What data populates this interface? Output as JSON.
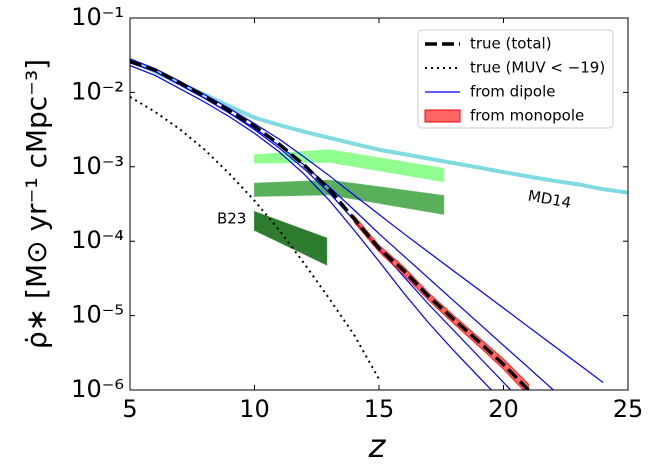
{
  "chart_data": {
    "type": "line",
    "x_label": "z",
    "y_label": "ρ̇∗ [M⊙ yr⁻¹ cMpc⁻³]",
    "xlim": [
      5,
      25
    ],
    "xticks": [
      5,
      10,
      15,
      20,
      25
    ],
    "ylim": [
      1e-06,
      0.1
    ],
    "yticks": [
      {
        "value": 1e-06,
        "label": "10⁻⁶"
      },
      {
        "value": 1e-05,
        "label": "10⁻⁵"
      },
      {
        "value": 0.0001,
        "label": "10⁻⁴"
      },
      {
        "value": 0.001,
        "label": "10⁻³"
      },
      {
        "value": 0.01,
        "label": "10⁻²"
      },
      {
        "value": 0.1,
        "label": "10⁻¹"
      }
    ],
    "y_log": true,
    "legend": "upper right",
    "series": [
      {
        "kind": "line",
        "color": "#7fdbe0",
        "width": 4,
        "dash": "solid",
        "x": [
          5,
          6,
          7,
          8,
          9,
          10,
          11,
          12,
          13,
          14,
          15,
          16,
          17,
          18,
          19,
          20,
          21,
          22,
          23,
          24,
          25
        ],
        "values": [
          0.0275,
          0.0191,
          0.0132,
          0.00933,
          0.00646,
          0.00457,
          0.00363,
          0.00295,
          0.00245,
          0.00204,
          0.0017,
          0.00148,
          0.00129,
          0.00112,
          0.00098,
          0.00085,
          0.00074,
          0.00065,
          0.00058,
          0.0005,
          0.00045
        ]
      },
      {
        "kind": "band",
        "color": "#90ff90",
        "opacity": 1,
        "x": [
          10,
          13,
          17.6
        ],
        "upper": [
          0.00145,
          0.0017,
          0.00095
        ],
        "lower": [
          0.00112,
          0.00115,
          0.00063
        ]
      },
      {
        "kind": "band",
        "color": "#5aaf5a",
        "opacity": 1,
        "x": [
          10,
          13,
          17.6
        ],
        "upper": [
          0.0006,
          0.00066,
          0.00041
        ],
        "lower": [
          0.0004,
          0.00042,
          0.00023
        ]
      },
      {
        "kind": "band",
        "color": "#2e7d2e",
        "opacity": 1,
        "x": [
          10,
          12.9
        ],
        "upper": [
          0.00025,
          0.00011
        ],
        "lower": [
          0.00014,
          4.8e-05
        ]
      },
      {
        "kind": "line",
        "name": "from dipole",
        "color": "#0000ff",
        "width": 1.2,
        "dash": "solid",
        "x": [
          5,
          6,
          7,
          8,
          9,
          10,
          11,
          12,
          13,
          14,
          15,
          16,
          17,
          18,
          19,
          20,
          21,
          22,
          23,
          24
        ],
        "values": [
          0.0282,
          0.0209,
          0.0141,
          0.00933,
          0.00603,
          0.0038,
          0.00234,
          0.00135,
          0.000759,
          0.000417,
          0.000229,
          0.000126,
          7.08e-05,
          3.98e-05,
          2.24e-05,
          1.26e-05,
          7.08e-06,
          3.98e-06,
          2.24e-06,
          1.26e-06
        ]
      },
      {
        "kind": "line",
        "color": "#0000ff",
        "width": 1.2,
        "dash": "solid",
        "x": [
          5,
          6,
          7,
          8,
          9,
          10,
          11,
          12,
          13,
          14,
          15,
          16,
          17,
          18,
          19,
          20,
          21,
          22
        ],
        "values": [
          0.0251,
          0.0191,
          0.0126,
          0.00832,
          0.00525,
          0.00331,
          0.00191,
          0.00105,
          0.000537,
          0.000263,
          0.000126,
          6.31e-05,
          3.16e-05,
          1.58e-05,
          7.94e-06,
          3.98e-06,
          2e-06,
          1e-06
        ]
      },
      {
        "kind": "line",
        "color": "#0000ff",
        "width": 1.2,
        "dash": "solid",
        "x": [
          5,
          6,
          7,
          8,
          9,
          10,
          11,
          12,
          13,
          14,
          15,
          16,
          17,
          18,
          19,
          20,
          21
        ],
        "values": [
          0.0251,
          0.0191,
          0.0126,
          0.00832,
          0.00525,
          0.00316,
          0.00178,
          0.000933,
          0.000447,
          0.000191,
          7.94e-05,
          3.31e-05,
          1.41e-05,
          6.31e-06,
          2.82e-06,
          1.26e-06,
          5.62e-07
        ]
      },
      {
        "kind": "line",
        "color": "#0000ff",
        "width": 1.2,
        "dash": "solid",
        "x": [
          5,
          6,
          7,
          8,
          9,
          10,
          11,
          12,
          13,
          14,
          15,
          16,
          17,
          18,
          19,
          20
        ],
        "values": [
          0.0229,
          0.017,
          0.0112,
          0.00741,
          0.00468,
          0.00282,
          0.00158,
          0.000794,
          0.000355,
          0.000141,
          5.37e-05,
          2e-05,
          7.94e-06,
          3.39e-06,
          1.51e-06,
          6.76e-07
        ]
      },
      {
        "kind": "band",
        "name": "from monopole",
        "color": "#ff0000",
        "opacity": 0.6,
        "x": [
          14,
          15,
          16,
          17,
          18,
          19,
          20,
          21
        ],
        "upper": [
          0.00022,
          8.8e-05,
          4.5e-05,
          2e-05,
          1e-05,
          5.1e-06,
          2.6e-06,
          1.2e-06
        ],
        "lower": [
          0.00018,
          7.2e-05,
          3.5e-05,
          1.6e-05,
          7.8e-06,
          3.9e-06,
          1.9e-06,
          8.5e-07
        ]
      },
      {
        "kind": "line",
        "name": "true (total)",
        "color": "#000000",
        "width": 3.5,
        "dash": "dashed",
        "x": [
          5,
          6,
          7,
          8,
          9,
          10,
          11,
          12,
          13,
          14,
          15,
          16,
          17,
          18,
          19,
          20,
          21
        ],
        "values": [
          0.026,
          0.02,
          0.0135,
          0.0089,
          0.0056,
          0.0035,
          0.002,
          0.00105,
          0.0005,
          0.0002,
          8e-05,
          4e-05,
          1.8e-05,
          8.9e-06,
          4.5e-06,
          2.2e-06,
          1e-06
        ]
      },
      {
        "kind": "line",
        "name": "true (MUV < −19)",
        "color": "#000000",
        "width": 2,
        "dash": "dotted",
        "x": [
          5,
          6,
          7,
          8,
          9,
          10,
          11,
          12,
          13,
          14,
          15
        ],
        "values": [
          0.0087,
          0.0055,
          0.0032,
          0.0017,
          0.0008,
          0.00035,
          0.00014,
          5e-05,
          1.7e-05,
          5.5e-06,
          1.4e-06
        ]
      }
    ],
    "legend_order": [
      9,
      10,
      4,
      8
    ],
    "annotations": [
      {
        "text": "MD14",
        "color": "#00bfc4"
      },
      {
        "text": "B23",
        "color": "#006400"
      }
    ]
  }
}
